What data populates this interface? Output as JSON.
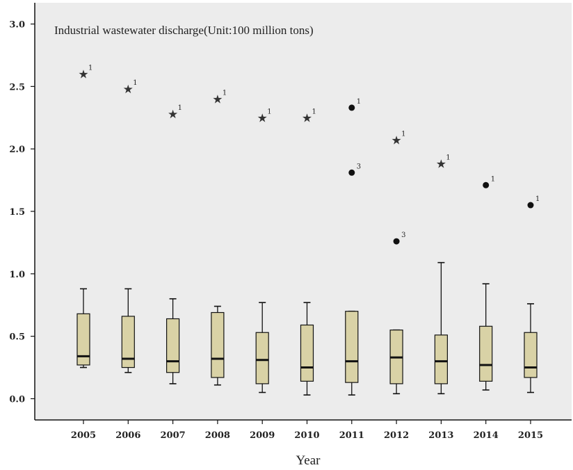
{
  "chart_data": {
    "type": "box",
    "title": "Industrial wastewater discharge(Unit:100 million tons)",
    "xlabel": "Year",
    "ylabel": "",
    "ylim": [
      -0.17,
      3.17
    ],
    "yticks": [
      "0.0",
      "0.5",
      "1.0",
      "1.5",
      "2.0",
      "2.5",
      "3.0"
    ],
    "categories": [
      "2005",
      "2006",
      "2007",
      "2008",
      "2009",
      "2010",
      "2011",
      "2012",
      "2013",
      "2014",
      "2015"
    ],
    "boxes": [
      {
        "min": 0.25,
        "q1": 0.27,
        "median": 0.34,
        "q3": 0.68,
        "max": 0.88
      },
      {
        "min": 0.21,
        "q1": 0.25,
        "median": 0.32,
        "q3": 0.66,
        "max": 0.88
      },
      {
        "min": 0.12,
        "q1": 0.21,
        "median": 0.3,
        "q3": 0.64,
        "max": 0.8
      },
      {
        "min": 0.11,
        "q1": 0.17,
        "median": 0.32,
        "q3": 0.69,
        "max": 0.74
      },
      {
        "min": 0.05,
        "q1": 0.12,
        "median": 0.31,
        "q3": 0.53,
        "max": 0.77
      },
      {
        "min": 0.03,
        "q1": 0.14,
        "median": 0.25,
        "q3": 0.59,
        "max": 0.77
      },
      {
        "min": 0.03,
        "q1": 0.13,
        "median": 0.3,
        "q3": 0.7,
        "max": 0.7
      },
      {
        "min": 0.04,
        "q1": 0.12,
        "median": 0.33,
        "q3": 0.55,
        "max": 0.55
      },
      {
        "min": 0.04,
        "q1": 0.12,
        "median": 0.3,
        "q3": 0.51,
        "max": 1.09
      },
      {
        "min": 0.07,
        "q1": 0.14,
        "median": 0.27,
        "q3": 0.58,
        "max": 0.92
      },
      {
        "min": 0.05,
        "q1": 0.17,
        "median": 0.25,
        "q3": 0.53,
        "max": 0.76
      }
    ],
    "outliers": [
      {
        "category": "2005",
        "value": 2.6,
        "marker": "star",
        "label": "1"
      },
      {
        "category": "2006",
        "value": 2.48,
        "marker": "star",
        "label": "1"
      },
      {
        "category": "2007",
        "value": 2.28,
        "marker": "star",
        "label": "1"
      },
      {
        "category": "2008",
        "value": 2.4,
        "marker": "star",
        "label": "1"
      },
      {
        "category": "2009",
        "value": 2.25,
        "marker": "star",
        "label": "1"
      },
      {
        "category": "2010",
        "value": 2.25,
        "marker": "star",
        "label": "1"
      },
      {
        "category": "2011",
        "value": 2.33,
        "marker": "circle",
        "label": "1"
      },
      {
        "category": "2011",
        "value": 1.81,
        "marker": "circle",
        "label": "3"
      },
      {
        "category": "2012",
        "value": 2.07,
        "marker": "star",
        "label": "1"
      },
      {
        "category": "2012",
        "value": 1.26,
        "marker": "circle",
        "label": "3"
      },
      {
        "category": "2013",
        "value": 1.88,
        "marker": "star",
        "label": "1"
      },
      {
        "category": "2014",
        "value": 1.71,
        "marker": "circle",
        "label": "1"
      },
      {
        "category": "2015",
        "value": 1.55,
        "marker": "circle",
        "label": "1"
      }
    ],
    "grid": false,
    "colors": {
      "plot_background": "#ececec",
      "box_fill": "#d9d2a6",
      "stroke": "#111111"
    }
  }
}
